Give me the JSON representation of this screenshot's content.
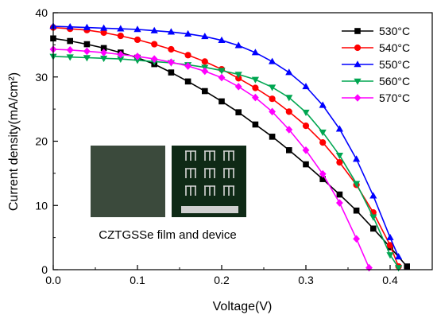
{
  "chart_data": {
    "type": "line",
    "xlabel": "Voltage(V)",
    "ylabel": "Current density(mA/cm²)",
    "xlim": [
      0.0,
      0.45
    ],
    "ylim": [
      0,
      40
    ],
    "xticks": [
      0.0,
      0.1,
      0.2,
      0.3,
      0.4
    ],
    "xtick_labels": [
      "0.0",
      "0.1",
      "0.2",
      "0.3",
      "0.4"
    ],
    "yticks": [
      0,
      10,
      20,
      30,
      40
    ],
    "ytick_labels": [
      "0",
      "10",
      "20",
      "30",
      "40"
    ],
    "grid": false,
    "legend_position": "top-right",
    "series": [
      {
        "name": "530°C",
        "color": "#000000",
        "marker": "square",
        "x": [
          0.0,
          0.02,
          0.04,
          0.06,
          0.08,
          0.1,
          0.12,
          0.14,
          0.16,
          0.18,
          0.2,
          0.22,
          0.24,
          0.26,
          0.28,
          0.3,
          0.32,
          0.34,
          0.36,
          0.38,
          0.4,
          0.42
        ],
        "y": [
          36.0,
          35.6,
          35.1,
          34.5,
          33.8,
          33.0,
          32.0,
          30.7,
          29.3,
          27.8,
          26.2,
          24.5,
          22.6,
          20.7,
          18.6,
          16.4,
          14.1,
          11.7,
          9.2,
          6.4,
          3.5,
          0.5
        ]
      },
      {
        "name": "540°C",
        "color": "#ff0000",
        "marker": "circle",
        "x": [
          0.0,
          0.02,
          0.04,
          0.06,
          0.08,
          0.1,
          0.12,
          0.14,
          0.16,
          0.18,
          0.2,
          0.22,
          0.24,
          0.26,
          0.28,
          0.3,
          0.32,
          0.34,
          0.36,
          0.38,
          0.4,
          0.41
        ],
        "y": [
          37.7,
          37.5,
          37.3,
          36.9,
          36.4,
          35.8,
          35.1,
          34.3,
          33.4,
          32.4,
          31.2,
          29.8,
          28.3,
          26.6,
          24.6,
          22.4,
          19.8,
          16.7,
          13.2,
          8.9,
          3.8,
          0.5
        ]
      },
      {
        "name": "550°C",
        "color": "#0000ff",
        "marker": "triangle-up",
        "x": [
          0.0,
          0.02,
          0.04,
          0.06,
          0.08,
          0.1,
          0.12,
          0.14,
          0.16,
          0.18,
          0.2,
          0.22,
          0.24,
          0.26,
          0.28,
          0.3,
          0.32,
          0.34,
          0.36,
          0.38,
          0.4,
          0.41
        ],
        "y": [
          37.9,
          37.8,
          37.7,
          37.6,
          37.5,
          37.4,
          37.2,
          37.0,
          36.7,
          36.3,
          35.7,
          34.9,
          33.8,
          32.4,
          30.7,
          28.5,
          25.6,
          21.9,
          17.2,
          11.5,
          5.0,
          2.0
        ]
      },
      {
        "name": "560°C",
        "color": "#00a651",
        "marker": "triangle-down",
        "x": [
          0.0,
          0.02,
          0.04,
          0.06,
          0.08,
          0.1,
          0.12,
          0.14,
          0.16,
          0.18,
          0.2,
          0.22,
          0.24,
          0.26,
          0.28,
          0.3,
          0.32,
          0.34,
          0.36,
          0.38,
          0.4,
          0.41
        ],
        "y": [
          33.2,
          33.1,
          33.0,
          32.9,
          32.8,
          32.6,
          32.4,
          32.2,
          31.9,
          31.5,
          31.0,
          30.4,
          29.6,
          28.4,
          26.8,
          24.5,
          21.4,
          17.8,
          13.4,
          8.2,
          2.3,
          0.3
        ]
      },
      {
        "name": "570°C",
        "color": "#ff00ff",
        "marker": "diamond",
        "x": [
          0.0,
          0.02,
          0.04,
          0.06,
          0.08,
          0.1,
          0.12,
          0.14,
          0.16,
          0.18,
          0.2,
          0.22,
          0.24,
          0.26,
          0.28,
          0.3,
          0.32,
          0.34,
          0.36,
          0.375
        ],
        "y": [
          34.3,
          34.2,
          34.0,
          33.8,
          33.5,
          33.2,
          32.8,
          32.3,
          31.7,
          30.9,
          29.9,
          28.5,
          26.8,
          24.6,
          21.8,
          18.6,
          14.9,
          10.4,
          4.8,
          0.3
        ]
      }
    ]
  },
  "inset": {
    "caption": "CZTGSSe film and device",
    "film_color": "#3b4a3c",
    "device_color": "#0f2a16"
  }
}
